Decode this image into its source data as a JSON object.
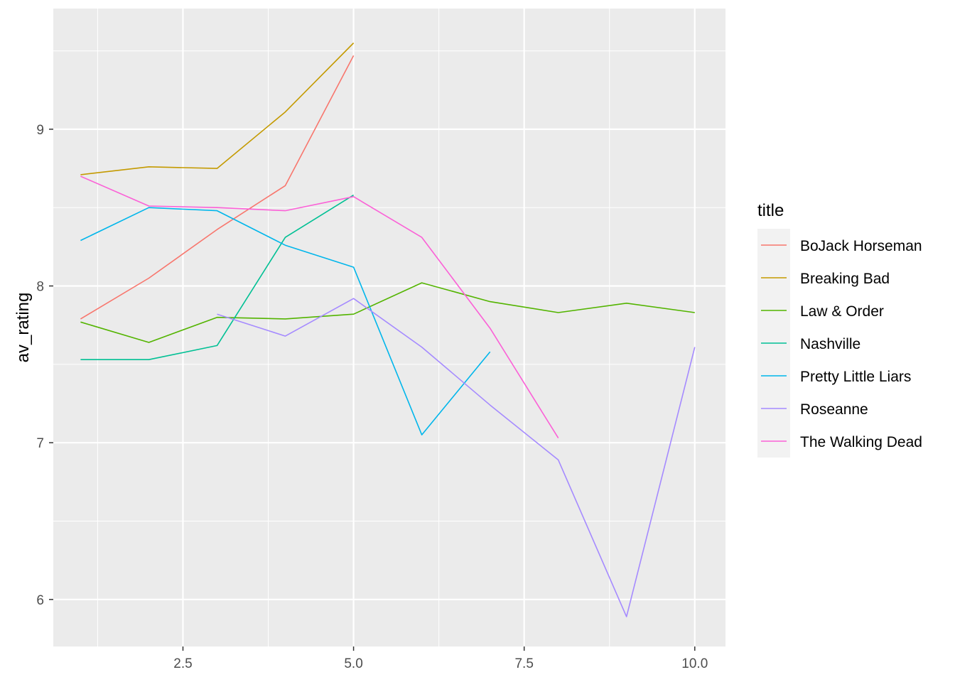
{
  "chart_data": {
    "type": "line",
    "title": "",
    "xlabel": "",
    "ylabel": "av_rating",
    "xlim": [
      0.6,
      10.45
    ],
    "ylim": [
      5.7,
      9.77
    ],
    "x_ticks": [
      2.5,
      5.0,
      7.5,
      10.0
    ],
    "x_tick_labels": [
      "2.5",
      "5.0",
      "7.5",
      "10.0"
    ],
    "y_ticks": [
      6,
      7,
      8,
      9
    ],
    "y_tick_labels": [
      "6",
      "7",
      "8",
      "9"
    ],
    "grid": true,
    "legend": {
      "title": "title",
      "position": "right"
    },
    "colors": {
      "panel_background": "#EBEBEB",
      "grid": "#FFFFFF",
      "legend_key_background": "#F2F2F2",
      "tick_color": "#333333"
    },
    "series": [
      {
        "name": "BoJack Horseman",
        "color": "#F8766D",
        "x": [
          1,
          2,
          3,
          4,
          5
        ],
        "y": [
          7.79,
          8.05,
          8.36,
          8.64,
          9.47
        ]
      },
      {
        "name": "Breaking Bad",
        "color": "#C49A00",
        "x": [
          1,
          2,
          3,
          4,
          5
        ],
        "y": [
          8.71,
          8.76,
          8.75,
          9.11,
          9.55
        ]
      },
      {
        "name": "Law & Order",
        "color": "#53B400",
        "x": [
          1,
          2,
          3,
          4,
          5,
          6,
          7,
          8,
          9,
          10
        ],
        "y": [
          7.77,
          7.64,
          7.8,
          7.79,
          7.82,
          8.02,
          7.9,
          7.83,
          7.89,
          7.83
        ]
      },
      {
        "name": "Nashville",
        "color": "#00C094",
        "x": [
          1,
          2,
          3,
          4,
          5
        ],
        "y": [
          7.53,
          7.53,
          7.62,
          8.31,
          8.58
        ]
      },
      {
        "name": "Pretty Little Liars",
        "color": "#00B6EB",
        "x": [
          1,
          2,
          3,
          4,
          5,
          6,
          7
        ],
        "y": [
          8.29,
          8.5,
          8.48,
          8.26,
          8.12,
          7.05,
          7.58
        ]
      },
      {
        "name": "Roseanne",
        "color": "#A58AFF",
        "x": [
          3,
          4,
          5,
          6,
          7,
          8,
          9,
          10
        ],
        "y": [
          7.82,
          7.68,
          7.92,
          7.61,
          7.24,
          6.89,
          5.89,
          7.61
        ]
      },
      {
        "name": "The Walking Dead",
        "color": "#FB61D7",
        "x": [
          1,
          2,
          3,
          4,
          5,
          6,
          7,
          8
        ],
        "y": [
          8.7,
          8.51,
          8.5,
          8.48,
          8.57,
          8.31,
          7.73,
          7.03
        ]
      }
    ]
  }
}
